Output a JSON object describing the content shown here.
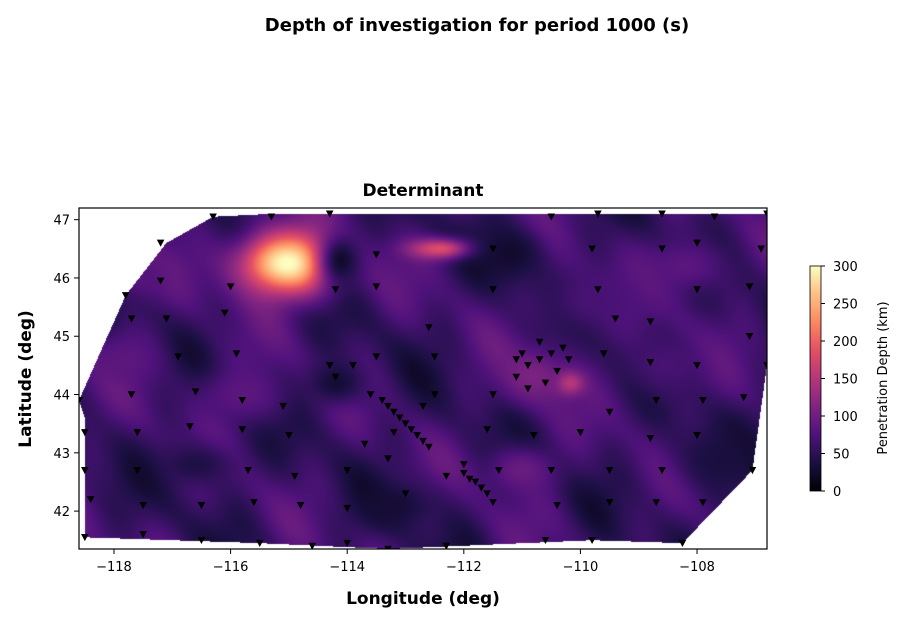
{
  "chart_data": {
    "type": "heatmap",
    "suptitle": "Depth of investigation for period  1000 (s)",
    "title": "Determinant",
    "xlabel": "Longitude (deg)",
    "ylabel": "Latitude (deg)",
    "xlim": [
      -118.6,
      -106.8
    ],
    "ylim": [
      41.35,
      47.2
    ],
    "xticks": [
      -118,
      -116,
      -114,
      -112,
      -110,
      -108
    ],
    "yticks": [
      42,
      43,
      44,
      45,
      46,
      47
    ],
    "colorbar": {
      "label": "Penetration Depth (km)",
      "colormap": "magma",
      "range": [
        0,
        300
      ],
      "ticks": [
        0,
        50,
        100,
        150,
        200,
        250,
        300
      ]
    },
    "hull": [
      [
        -118.5,
        41.55
      ],
      [
        -118.5,
        43.6
      ],
      [
        -118.6,
        43.9
      ],
      [
        -117.8,
        45.7
      ],
      [
        -117.1,
        46.6
      ],
      [
        -116.3,
        47.05
      ],
      [
        -115.3,
        47.1
      ],
      [
        -106.8,
        47.1
      ],
      [
        -106.8,
        44.5
      ],
      [
        -107.05,
        42.7
      ],
      [
        -108.25,
        41.45
      ],
      [
        -109.8,
        41.5
      ],
      [
        -113.3,
        41.35
      ],
      [
        -115.5,
        41.45
      ],
      [
        -118.5,
        41.55
      ]
    ],
    "anomalies": [
      {
        "lon": -115.0,
        "lat": 46.25,
        "value": 305,
        "sx": 0.85,
        "sy": 0.55
      },
      {
        "lon": -112.4,
        "lat": 46.5,
        "value": 185,
        "sx": 0.55,
        "sy": 0.18
      },
      {
        "lon": -110.2,
        "lat": 44.2,
        "value": 175,
        "sx": 0.25,
        "sy": 0.2
      },
      {
        "lon": -110.8,
        "lat": 44.3,
        "value": 110,
        "sx": 0.6,
        "sy": 0.5
      },
      {
        "lon": -117.8,
        "lat": 44.6,
        "value": 85,
        "sx": 0.6,
        "sy": 0.5
      },
      {
        "lon": -117.5,
        "lat": 46.0,
        "value": 80,
        "sx": 0.5,
        "sy": 0.4
      },
      {
        "lon": -115.8,
        "lat": 44.0,
        "value": 85,
        "sx": 0.8,
        "sy": 0.5
      },
      {
        "lon": -113.2,
        "lat": 42.1,
        "value": 30,
        "sx": 0.7,
        "sy": 0.4
      },
      {
        "lon": -114.1,
        "lat": 46.3,
        "value": 25,
        "sx": 0.4,
        "sy": 0.5
      },
      {
        "lon": -111.2,
        "lat": 46.4,
        "value": 25,
        "sx": 0.6,
        "sy": 0.5
      },
      {
        "lon": -114.2,
        "lat": 44.2,
        "value": 30,
        "sx": 0.5,
        "sy": 0.4
      },
      {
        "lon": -109.8,
        "lat": 45.6,
        "value": 70,
        "sx": 0.9,
        "sy": 0.6
      },
      {
        "lon": -108.2,
        "lat": 46.2,
        "value": 85,
        "sx": 0.8,
        "sy": 0.5
      },
      {
        "lon": -107.6,
        "lat": 42.9,
        "value": 35,
        "sx": 0.8,
        "sy": 0.6
      },
      {
        "lon": -116.6,
        "lat": 42.8,
        "value": 40,
        "sx": 0.7,
        "sy": 0.4
      },
      {
        "lon": -111.0,
        "lat": 42.7,
        "value": 95,
        "sx": 0.6,
        "sy": 0.4
      },
      {
        "lon": -108.5,
        "lat": 44.5,
        "value": 70,
        "sx": 0.8,
        "sy": 0.6
      }
    ],
    "stations": [
      [
        -118.5,
        41.55
      ],
      [
        -118.4,
        42.2
      ],
      [
        -118.5,
        42.7
      ],
      [
        -118.5,
        43.35
      ],
      [
        -118.6,
        43.9
      ],
      [
        -117.8,
        45.7
      ],
      [
        -117.7,
        45.3
      ],
      [
        -117.7,
        44.0
      ],
      [
        -117.6,
        43.35
      ],
      [
        -117.6,
        42.7
      ],
      [
        -117.5,
        42.1
      ],
      [
        -117.5,
        41.6
      ],
      [
        -117.2,
        46.6
      ],
      [
        -117.2,
        45.95
      ],
      [
        -117.1,
        45.3
      ],
      [
        -116.9,
        44.65
      ],
      [
        -116.6,
        44.05
      ],
      [
        -116.7,
        43.45
      ],
      [
        -116.5,
        42.1
      ],
      [
        -116.5,
        41.5
      ],
      [
        -116.3,
        47.05
      ],
      [
        -116.1,
        45.4
      ],
      [
        -116.0,
        45.85
      ],
      [
        -115.9,
        44.7
      ],
      [
        -115.8,
        43.9
      ],
      [
        -115.8,
        43.4
      ],
      [
        -115.7,
        42.7
      ],
      [
        -115.6,
        42.15
      ],
      [
        -115.5,
        41.45
      ],
      [
        -115.3,
        47.05
      ],
      [
        -115.1,
        43.8
      ],
      [
        -115.0,
        43.3
      ],
      [
        -114.9,
        42.6
      ],
      [
        -114.8,
        42.1
      ],
      [
        -114.6,
        41.4
      ],
      [
        -114.3,
        47.1
      ],
      [
        -114.2,
        45.8
      ],
      [
        -114.3,
        44.5
      ],
      [
        -114.2,
        44.3
      ],
      [
        -114.0,
        42.7
      ],
      [
        -114.0,
        42.05
      ],
      [
        -114.0,
        41.45
      ],
      [
        -113.9,
        44.5
      ],
      [
        -113.6,
        44.0
      ],
      [
        -113.5,
        46.4
      ],
      [
        -113.5,
        45.85
      ],
      [
        -113.5,
        44.65
      ],
      [
        -113.4,
        43.9
      ],
      [
        -113.3,
        43.8
      ],
      [
        -113.2,
        43.7
      ],
      [
        -113.1,
        43.6
      ],
      [
        -113.0,
        43.5
      ],
      [
        -112.9,
        43.4
      ],
      [
        -112.8,
        43.3
      ],
      [
        -112.7,
        43.2
      ],
      [
        -112.6,
        43.1
      ],
      [
        -113.7,
        43.15
      ],
      [
        -113.3,
        42.9
      ],
      [
        -113.2,
        43.35
      ],
      [
        -113.0,
        42.3
      ],
      [
        -113.3,
        41.35
      ],
      [
        -112.7,
        43.8
      ],
      [
        -112.5,
        44.65
      ],
      [
        -112.5,
        44.0
      ],
      [
        -112.6,
        45.15
      ],
      [
        -112.3,
        42.6
      ],
      [
        -112.3,
        41.4
      ],
      [
        -112.0,
        42.8
      ],
      [
        -112.0,
        42.65
      ],
      [
        -111.9,
        42.55
      ],
      [
        -111.8,
        42.5
      ],
      [
        -111.7,
        42.4
      ],
      [
        -111.6,
        42.3
      ],
      [
        -111.5,
        42.15
      ],
      [
        -111.4,
        42.7
      ],
      [
        -111.6,
        43.4
      ],
      [
        -111.5,
        44.0
      ],
      [
        -111.5,
        46.5
      ],
      [
        -111.5,
        45.8
      ],
      [
        -111.1,
        44.6
      ],
      [
        -111.0,
        44.7
      ],
      [
        -110.9,
        44.5
      ],
      [
        -110.7,
        44.6
      ],
      [
        -110.5,
        44.7
      ],
      [
        -110.3,
        44.8
      ],
      [
        -110.6,
        44.2
      ],
      [
        -110.9,
        44.1
      ],
      [
        -110.4,
        44.4
      ],
      [
        -110.2,
        44.6
      ],
      [
        -111.1,
        44.3
      ],
      [
        -110.7,
        44.9
      ],
      [
        -110.8,
        43.3
      ],
      [
        -110.5,
        42.7
      ],
      [
        -110.4,
        42.1
      ],
      [
        -110.6,
        41.5
      ],
      [
        -110.5,
        47.05
      ],
      [
        -110.0,
        43.35
      ],
      [
        -109.8,
        46.5
      ],
      [
        -109.7,
        45.8
      ],
      [
        -109.6,
        44.7
      ],
      [
        -109.4,
        45.3
      ],
      [
        -109.5,
        43.7
      ],
      [
        -109.5,
        42.7
      ],
      [
        -109.5,
        42.15
      ],
      [
        -109.8,
        41.5
      ],
      [
        -109.7,
        47.1
      ],
      [
        -108.8,
        45.25
      ],
      [
        -108.8,
        44.55
      ],
      [
        -108.7,
        43.9
      ],
      [
        -108.8,
        43.25
      ],
      [
        -108.6,
        42.7
      ],
      [
        -108.7,
        42.15
      ],
      [
        -108.6,
        46.5
      ],
      [
        -108.6,
        47.1
      ],
      [
        -108.0,
        46.6
      ],
      [
        -108.0,
        45.8
      ],
      [
        -108.0,
        44.5
      ],
      [
        -107.9,
        43.9
      ],
      [
        -108.0,
        43.3
      ],
      [
        -107.9,
        42.15
      ],
      [
        -108.25,
        41.45
      ],
      [
        -107.7,
        47.05
      ],
      [
        -107.1,
        45.85
      ],
      [
        -107.1,
        45.0
      ],
      [
        -107.2,
        43.95
      ],
      [
        -107.05,
        42.7
      ],
      [
        -106.9,
        46.5
      ],
      [
        -106.8,
        47.1
      ],
      [
        -106.8,
        44.5
      ]
    ]
  }
}
